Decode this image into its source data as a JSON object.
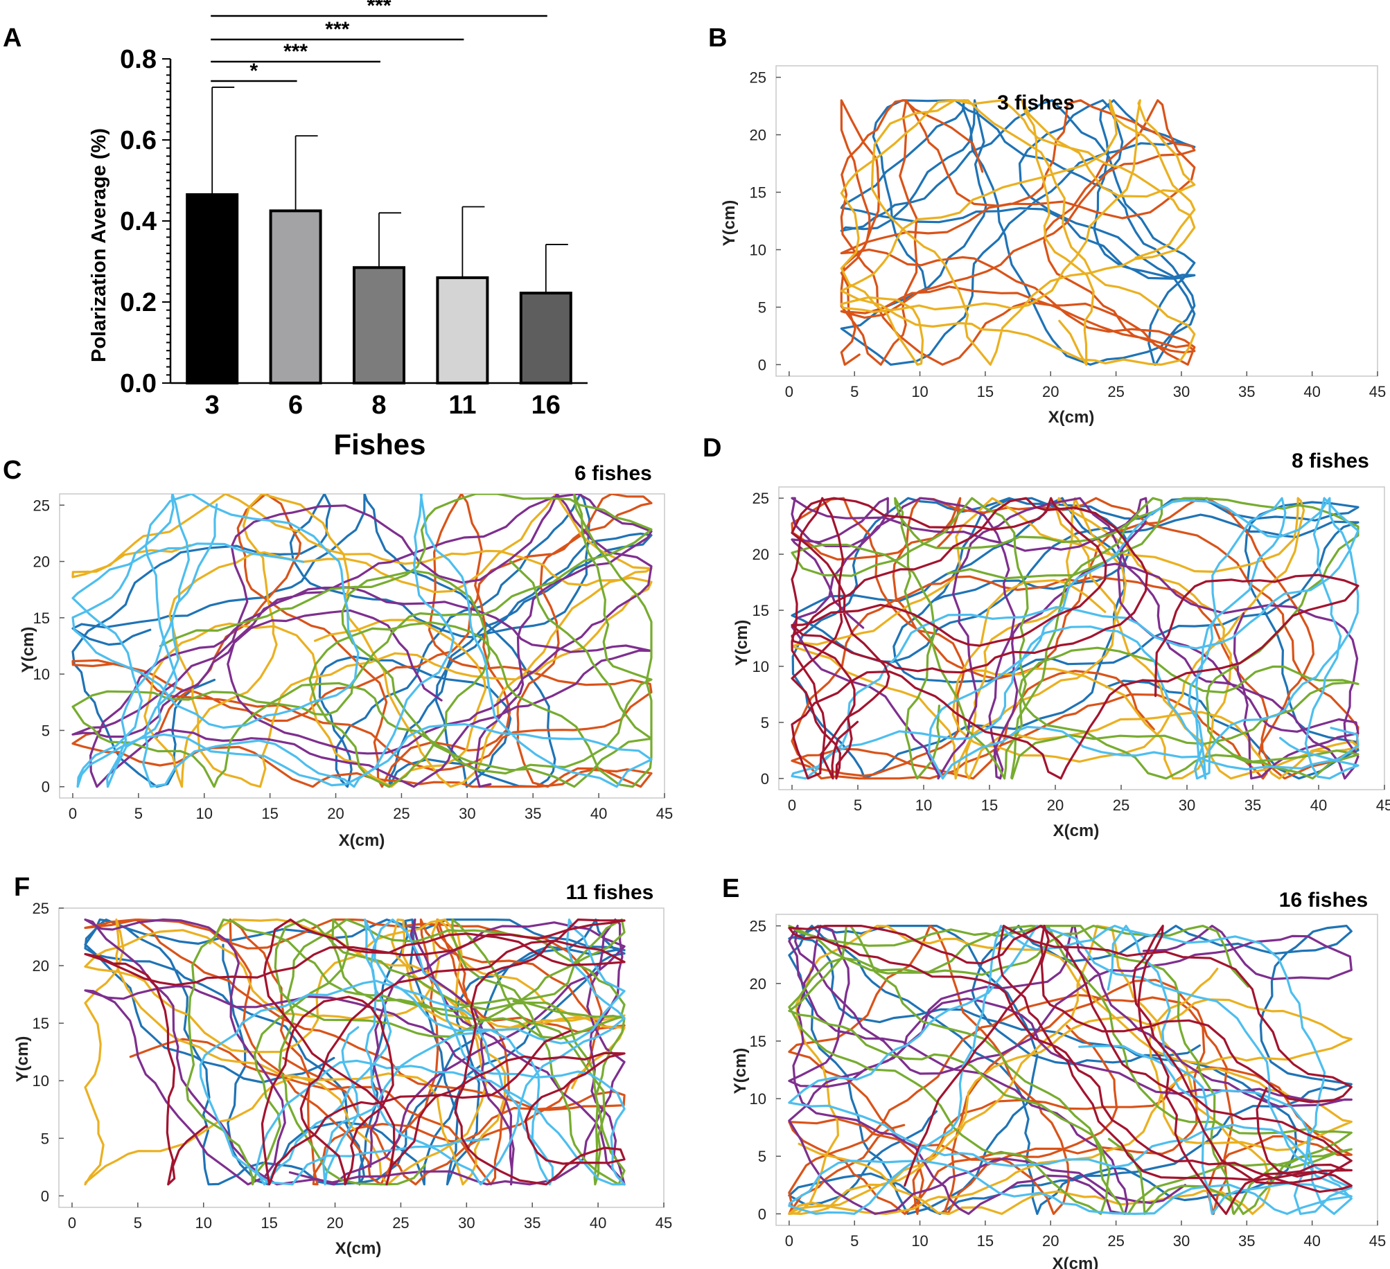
{
  "panel_letters": {
    "A": "A",
    "B": "B",
    "C": "C",
    "D": "D",
    "F": "F",
    "E": "E"
  },
  "colors": {
    "bar_fills": [
      "#000000",
      "#a3a3a6",
      "#7c7c7c",
      "#d4d4d4",
      "#5e5e5e"
    ],
    "trajectory_palette": [
      "#1f73b5",
      "#d95319",
      "#eab020",
      "#7e2f8e",
      "#77ac30",
      "#4dbeee",
      "#a2142f"
    ]
  },
  "chart_data": [
    {
      "id": "A",
      "type": "bar",
      "categories": [
        "3",
        "6",
        "8",
        "11",
        "16"
      ],
      "values": [
        0.465,
        0.425,
        0.285,
        0.26,
        0.222
      ],
      "errors": [
        0.265,
        0.185,
        0.135,
        0.175,
        0.12
      ],
      "xlabel": "Fishes",
      "ylabel": "Polarization Average (%)",
      "ylim": [
        0,
        0.8
      ],
      "yticks": [
        "0.0",
        "0.2",
        "0.4",
        "0.6",
        "0.8"
      ],
      "significance": [
        {
          "from": "3",
          "to": "6",
          "label": "*"
        },
        {
          "from": "3",
          "to": "8",
          "label": "***"
        },
        {
          "from": "3",
          "to": "11",
          "label": "***"
        },
        {
          "from": "3",
          "to": "16",
          "label": "***"
        }
      ]
    },
    {
      "id": "B",
      "type": "line",
      "title": "3 fishes",
      "n_series": 3,
      "xlabel": "X(cm)",
      "ylabel": "Y(cm)",
      "xlim": [
        -1,
        45
      ],
      "ylim": [
        -1,
        26
      ],
      "xticks": [
        "0",
        "5",
        "10",
        "15",
        "20",
        "25",
        "30",
        "35",
        "40",
        "45"
      ],
      "yticks": [
        "0",
        "5",
        "10",
        "15",
        "20",
        "25"
      ],
      "region": [
        4,
        0,
        31,
        23
      ]
    },
    {
      "id": "C",
      "type": "line",
      "title": "6 fishes",
      "n_series": 6,
      "xlabel": "X(cm)",
      "ylabel": "Y(cm)",
      "xlim": [
        -1,
        45
      ],
      "ylim": [
        -1,
        26
      ],
      "xticks": [
        "0",
        "5",
        "10",
        "15",
        "20",
        "25",
        "30",
        "35",
        "40",
        "45"
      ],
      "yticks": [
        "0",
        "5",
        "10",
        "15",
        "20",
        "25"
      ],
      "region": [
        0,
        0,
        44,
        26
      ]
    },
    {
      "id": "D",
      "type": "line",
      "title": "8 fishes",
      "n_series": 7,
      "xlabel": "X(cm)",
      "ylabel": "Y(cm)",
      "xlim": [
        -1,
        45
      ],
      "ylim": [
        -1,
        26
      ],
      "xticks": [
        "0",
        "5",
        "10",
        "15",
        "20",
        "25",
        "30",
        "35",
        "40",
        "45"
      ],
      "yticks": [
        "0",
        "5",
        "10",
        "15",
        "20",
        "25"
      ],
      "region": [
        0,
        0,
        43,
        25
      ]
    },
    {
      "id": "F",
      "type": "line",
      "title": "11 fishes",
      "n_series": 7,
      "xlabel": "X(cm)",
      "ylabel": "Y(cm)",
      "xlim": [
        -1,
        45
      ],
      "ylim": [
        -1,
        25
      ],
      "xticks": [
        "0",
        "5",
        "10",
        "15",
        "20",
        "25",
        "30",
        "35",
        "40",
        "45"
      ],
      "yticks": [
        "0",
        "5",
        "10",
        "15",
        "20",
        "25"
      ],
      "region": [
        1,
        1,
        42,
        24
      ]
    },
    {
      "id": "E",
      "type": "line",
      "title": "16 fishes",
      "n_series": 7,
      "xlabel": "X(cm)",
      "ylabel": "Y(cm)",
      "xlim": [
        -1,
        45
      ],
      "ylim": [
        -1,
        26
      ],
      "xticks": [
        "0",
        "5",
        "10",
        "15",
        "20",
        "25",
        "30",
        "35",
        "40",
        "45"
      ],
      "yticks": [
        "0",
        "5",
        "10",
        "15",
        "20",
        "25"
      ],
      "region": [
        0,
        0,
        43,
        25
      ]
    }
  ]
}
